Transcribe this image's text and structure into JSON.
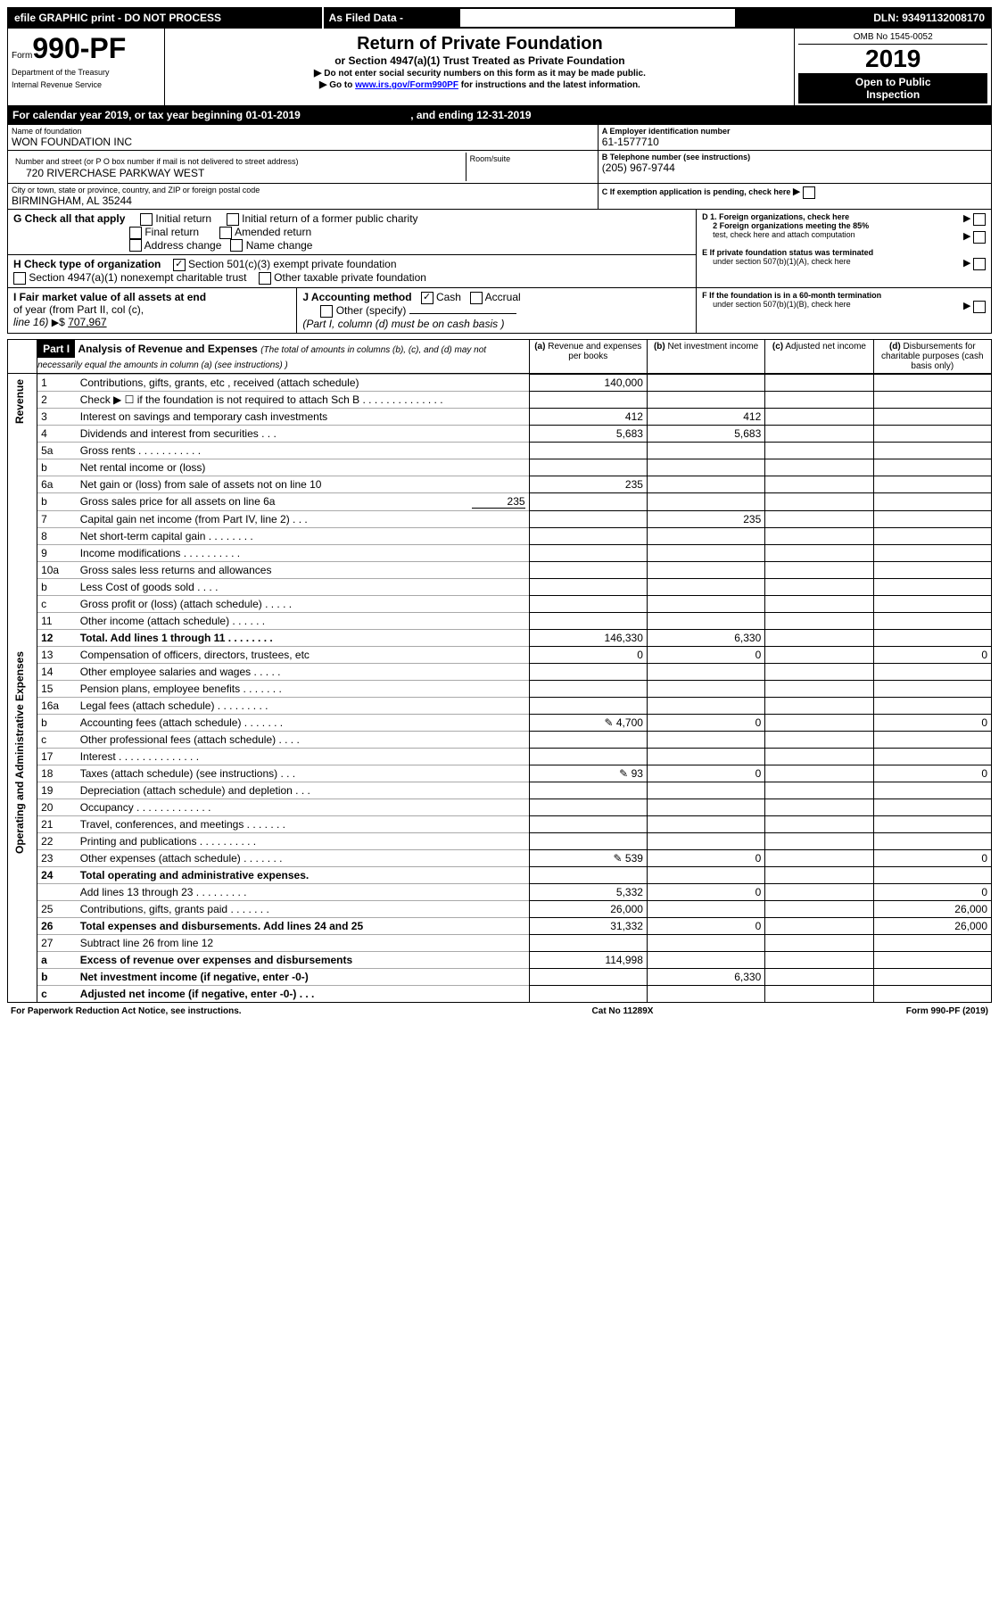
{
  "topbar": {
    "efile": "efile GRAPHIC print - DO NOT PROCESS",
    "asfiled": "As Filed Data -",
    "dln_label": "DLN:",
    "dln": "93491132008170"
  },
  "header": {
    "form_prefix": "Form",
    "form_no": "990-PF",
    "dept": "Department of the Treasury",
    "irs": "Internal Revenue Service",
    "title": "Return of Private Foundation",
    "subtitle": "or Section 4947(a)(1) Trust Treated as Private Foundation",
    "note1": "Do not enter social security numbers on this form as it may be made public.",
    "note2_pre": "Go to ",
    "note2_link": "www.irs.gov/Form990PF",
    "note2_post": " for instructions and the latest information.",
    "omb": "OMB No 1545-0052",
    "year": "2019",
    "open": "Open to Public",
    "insp": "Inspection"
  },
  "calyear": {
    "pre": "For calendar year 2019, or tax year beginning ",
    "begin": "01-01-2019",
    "mid": ", and ending ",
    "end": "12-31-2019"
  },
  "entity": {
    "name_label": "Name of foundation",
    "name": "WON FOUNDATION INC",
    "addr_label": "Number and street (or P O  box number if mail is not delivered to street address)",
    "room_label": "Room/suite",
    "addr": "720 RIVERCHASE PARKWAY WEST",
    "city_label": "City or town, state or province, country, and ZIP or foreign postal code",
    "city": "BIRMINGHAM, AL  35244",
    "A_label": "A Employer identification number",
    "A": "61-1577710",
    "B_label": "B Telephone number (see instructions)",
    "B": "(205) 967-9744",
    "C": "C If exemption application is pending, check here"
  },
  "checks": {
    "G": "G Check all that apply",
    "g1": "Initial return",
    "g2": "Initial return of a former public charity",
    "g3": "Final return",
    "g4": "Amended return",
    "g5": "Address change",
    "g6": "Name change",
    "H": "H Check type of organization",
    "h1": "Section 501(c)(3) exempt private foundation",
    "h2": "Section 4947(a)(1) nonexempt charitable trust",
    "h3": "Other taxable private foundation",
    "D": "D 1. Foreign organizations, check here",
    "D2a": "2 Foreign organizations meeting the 85%",
    "D2b": "test, check here and attach computation",
    "E": "E  If private foundation status was terminated",
    "E2": "under section 507(b)(1)(A), check here",
    "I": "I Fair market value of all assets at end",
    "I2": "of year (from Part II, col  (c),",
    "I3": "line 16)",
    "Ival": "707,967",
    "J": "J Accounting method",
    "j1": "Cash",
    "j2": "Accrual",
    "j3": "Other (specify)",
    "j4": "(Part I, column (d) must be on cash basis )",
    "F": "F  If the foundation is in a 60-month termination",
    "F2": "under section 507(b)(1)(B), check here"
  },
  "part1": {
    "label": "Part I",
    "title": "Analysis of Revenue and Expenses",
    "title_note": "(The total of amounts in columns (b), (c), and (d) may not necessarily equal the amounts in column (a) (see instructions) )",
    "col_a": "Revenue and expenses per books",
    "col_b": "Net investment income",
    "col_c": "Adjusted net income",
    "col_d": "Disbursements for charitable purposes (cash basis only)",
    "vlabel_rev": "Revenue",
    "vlabel_exp": "Operating and Administrative Expenses"
  },
  "rows": [
    {
      "n": "1",
      "t": "Contributions, gifts, grants, etc , received (attach schedule)",
      "a": "140,000"
    },
    {
      "n": "2",
      "t": "Check ▶ ☐ if the foundation is not required to attach Sch  B      .   .   .   .   .   .   .   .   .   .   .   .   .   ."
    },
    {
      "n": "3",
      "t": "Interest on savings and temporary cash investments",
      "a": "412",
      "b": "412"
    },
    {
      "n": "4",
      "t": "Dividends and interest from securities     .   .   .",
      "a": "5,683",
      "b": "5,683"
    },
    {
      "n": "5a",
      "t": "Gross rents        .   .   .   .   .   .   .   .   .   .   ."
    },
    {
      "n": "b",
      "t": "Net rental income or (loss)"
    },
    {
      "n": "6a",
      "t": "Net gain or (loss) from sale of assets not on line 10",
      "a": "235"
    },
    {
      "n": "b",
      "t": "Gross sales price for all assets on line 6a",
      "inline": "235"
    },
    {
      "n": "7",
      "t": "Capital gain net income (from Part IV, line 2)   .   .   .",
      "b": "235"
    },
    {
      "n": "8",
      "t": "Net short-term capital gain  .   .   .   .   .   .   .   ."
    },
    {
      "n": "9",
      "t": "Income modifications .   .   .   .   .   .   .   .   .   ."
    },
    {
      "n": "10a",
      "t": "Gross sales less returns and allowances"
    },
    {
      "n": "b",
      "t": "Less  Cost of goods sold     .   .   .   ."
    },
    {
      "n": "c",
      "t": "Gross profit or (loss) (attach schedule)    .   .   .   .   ."
    },
    {
      "n": "11",
      "t": "Other income (attach schedule)    .   .   .   .   .   ."
    },
    {
      "n": "12",
      "t": "Total. Add lines 1 through 11   .   .   .   .   .   .   .   .",
      "a": "146,330",
      "b": "6,330",
      "bold": true
    },
    {
      "n": "13",
      "t": "Compensation of officers, directors, trustees, etc",
      "a": "0",
      "b": "0",
      "d": "0"
    },
    {
      "n": "14",
      "t": "Other employee salaries and wages    .   .   .   .   ."
    },
    {
      "n": "15",
      "t": "Pension plans, employee benefits  .   .   .   .   .   .   ."
    },
    {
      "n": "16a",
      "t": "Legal fees (attach schedule) .   .   .   .   .   .   .   .   ."
    },
    {
      "n": "b",
      "t": "Accounting fees (attach schedule) .   .   .   .   .   .   .",
      "icon": true,
      "a": "4,700",
      "b": "0",
      "d": "0"
    },
    {
      "n": "c",
      "t": "Other professional fees (attach schedule)    .   .   .   ."
    },
    {
      "n": "17",
      "t": "Interest  .   .   .   .   .   .   .   .   .   .   .   .   .   ."
    },
    {
      "n": "18",
      "t": "Taxes (attach schedule) (see instructions)     .   .   .",
      "icon": true,
      "a": "93",
      "b": "0",
      "d": "0"
    },
    {
      "n": "19",
      "t": "Depreciation (attach schedule) and depletion   .   .   ."
    },
    {
      "n": "20",
      "t": "Occupancy   .   .   .   .   .   .   .   .   .   .   .   .   ."
    },
    {
      "n": "21",
      "t": "Travel, conferences, and meetings .   .   .   .   .   .   ."
    },
    {
      "n": "22",
      "t": "Printing and publications .   .   .   .   .   .   .   .   .   ."
    },
    {
      "n": "23",
      "t": "Other expenses (attach schedule) .   .   .   .   .   .   .",
      "icon": true,
      "a": "539",
      "b": "0",
      "d": "0"
    },
    {
      "n": "24",
      "t": "Total operating and administrative expenses.",
      "bold": true
    },
    {
      "n": "",
      "t": "Add lines 13 through 23   .   .   .   .   .   .   .   .   .",
      "a": "5,332",
      "b": "0",
      "d": "0"
    },
    {
      "n": "25",
      "t": "Contributions, gifts, grants paid   .   .   .   .   .   .   .",
      "a": "26,000",
      "d": "26,000"
    },
    {
      "n": "26",
      "t": "Total expenses and disbursements. Add lines 24 and 25",
      "a": "31,332",
      "b": "0",
      "d": "26,000",
      "bold": true
    },
    {
      "n": "27",
      "t": "Subtract line 26 from line 12"
    },
    {
      "n": "a",
      "t": "Excess of revenue over expenses and disbursements",
      "a": "114,998",
      "bold": true
    },
    {
      "n": "b",
      "t": "Net investment income (if negative, enter -0-)",
      "b": "6,330",
      "bold": true
    },
    {
      "n": "c",
      "t": "Adjusted net income (if negative, enter -0-)   .   .   .",
      "bold": true
    }
  ],
  "footer": {
    "left": "For Paperwork Reduction Act Notice, see instructions.",
    "mid": "Cat  No  11289X",
    "right": "Form 990-PF (2019)"
  }
}
